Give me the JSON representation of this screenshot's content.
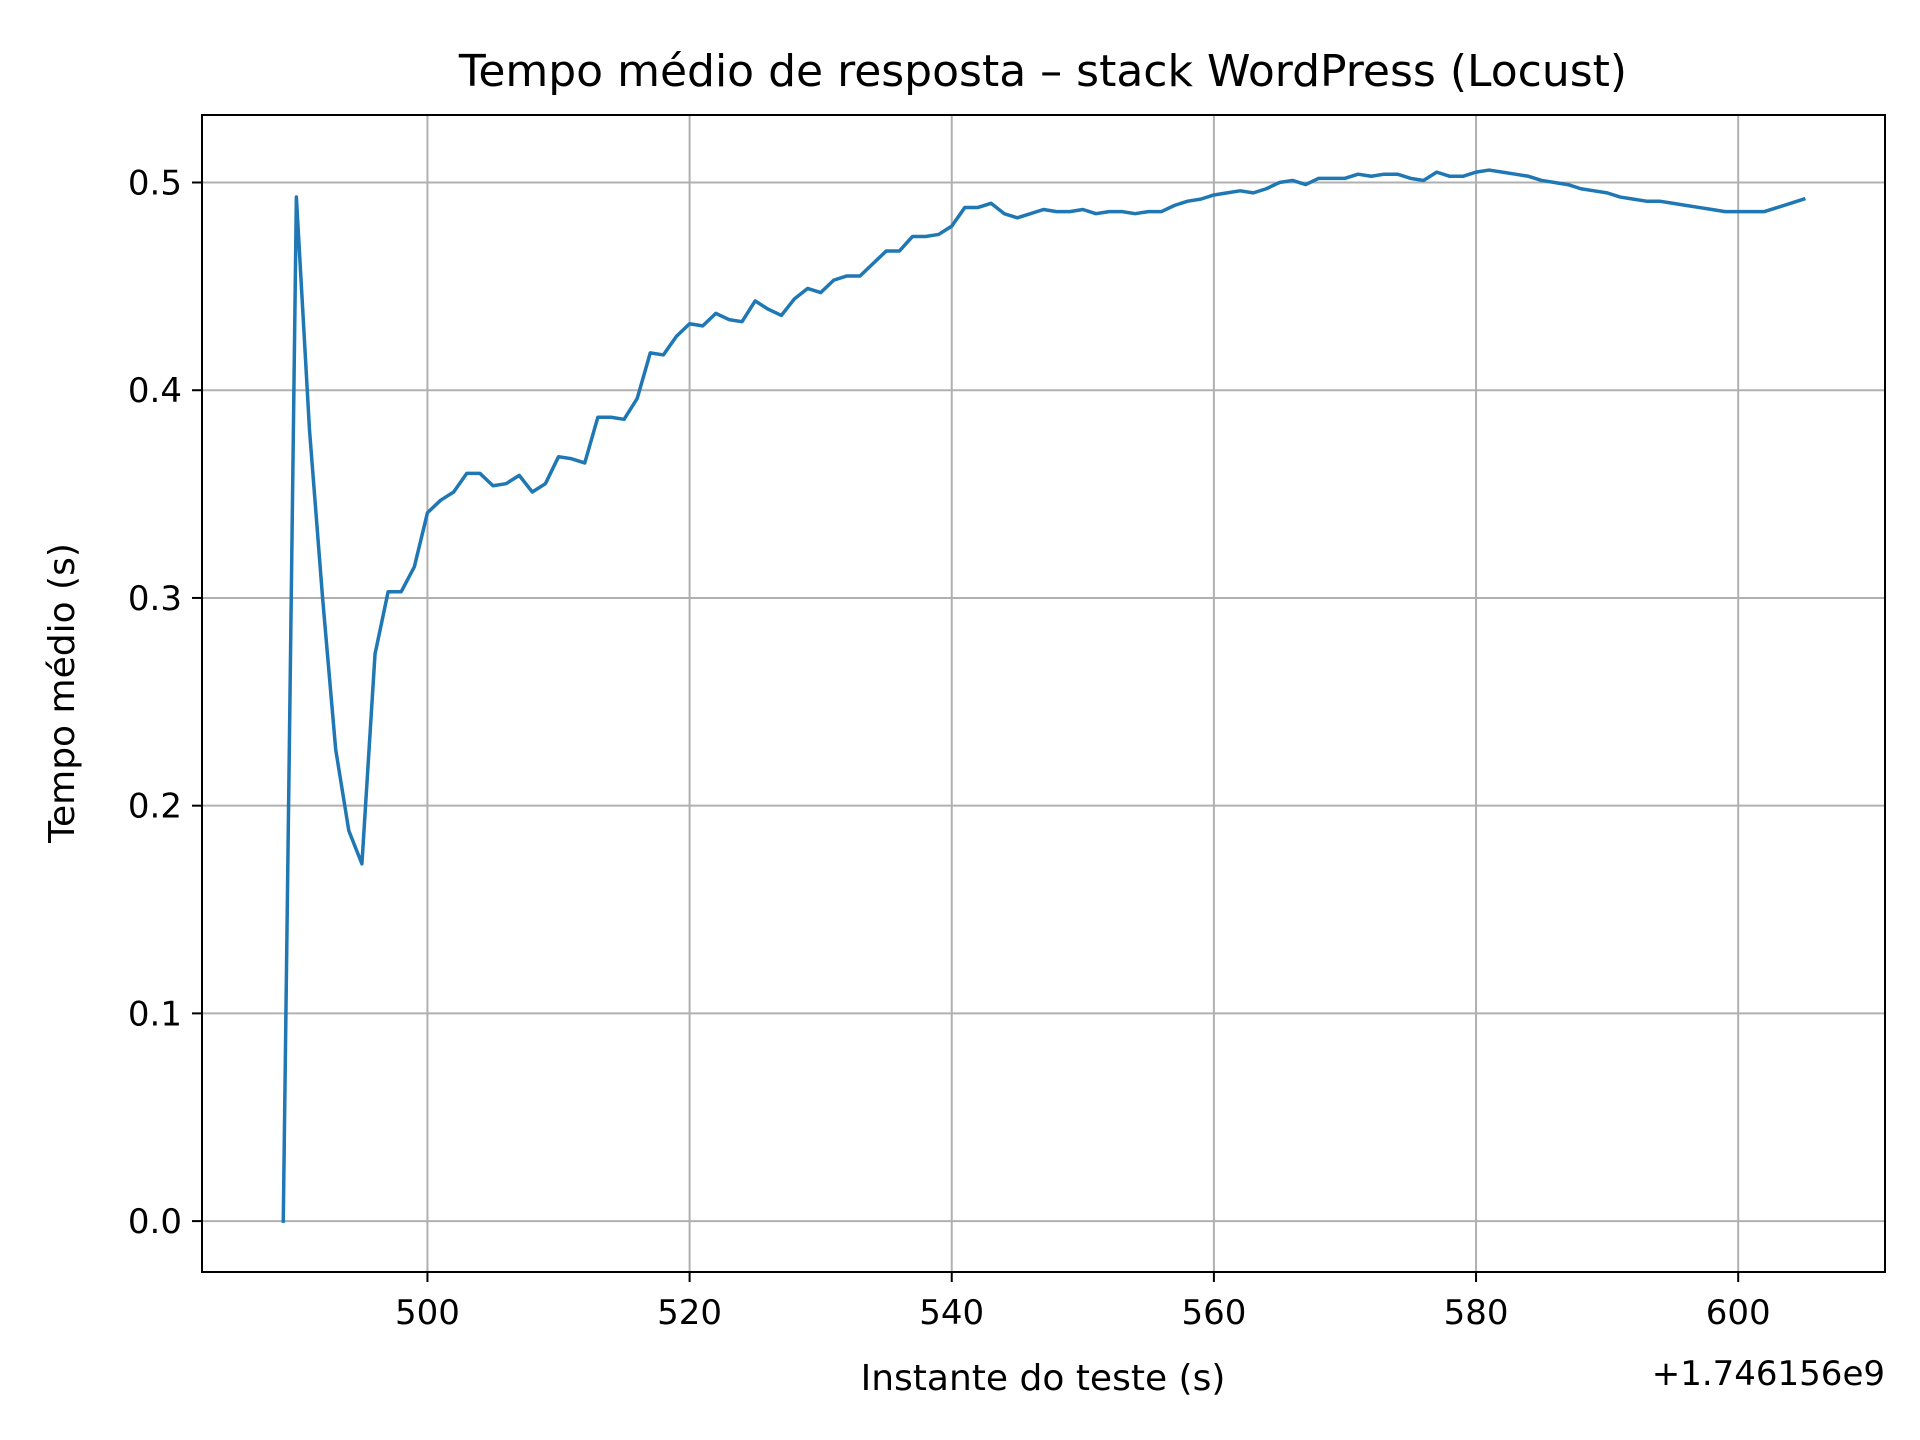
{
  "chart_data": {
    "type": "line",
    "title": "Tempo médio de resposta – stack WordPress (Locust)",
    "xlabel": "Instante do teste (s)",
    "ylabel": "Tempo médio (s)",
    "x_offset_label": "+1.746156e9",
    "xlim": [
      482.8,
      611.2
    ],
    "ylim": [
      -0.0245,
      0.5325
    ],
    "xticks": [
      500,
      520,
      540,
      560,
      580,
      600
    ],
    "xtick_labels": [
      "500",
      "520",
      "540",
      "560",
      "580",
      "600"
    ],
    "yticks": [
      0.0,
      0.1,
      0.2,
      0.3,
      0.4,
      0.5
    ],
    "ytick_labels": [
      "0.0",
      "0.1",
      "0.2",
      "0.3",
      "0.4",
      "0.5"
    ],
    "grid": true,
    "line_color": "#1f77b4",
    "x": [
      489,
      490,
      491,
      492,
      493,
      494,
      495,
      496,
      497,
      498,
      499,
      500,
      501,
      502,
      503,
      504,
      505,
      506,
      507,
      508,
      509,
      510,
      511,
      512,
      513,
      514,
      515,
      516,
      517,
      518,
      519,
      520,
      521,
      522,
      523,
      524,
      525,
      526,
      527,
      528,
      529,
      530,
      531,
      532,
      533,
      534,
      535,
      536,
      537,
      538,
      539,
      540,
      541,
      542,
      543,
      544,
      545,
      546,
      547,
      548,
      549,
      550,
      551,
      552,
      553,
      554,
      555,
      556,
      557,
      558,
      559,
      560,
      561,
      562,
      563,
      564,
      565,
      566,
      567,
      568,
      569,
      570,
      571,
      572,
      573,
      574,
      575,
      576,
      577,
      578,
      579,
      580,
      581,
      582,
      583,
      584,
      585,
      586,
      587,
      588,
      589,
      590,
      591,
      592,
      593,
      594,
      595,
      596,
      597,
      598,
      599,
      600,
      601,
      602,
      603,
      604,
      605
    ],
    "series": [
      {
        "values": [
          0.0,
          0.493,
          0.381,
          0.3,
          0.227,
          0.188,
          0.172,
          0.273,
          0.303,
          0.303,
          0.315,
          0.341,
          0.347,
          0.351,
          0.36,
          0.36,
          0.354,
          0.355,
          0.359,
          0.351,
          0.355,
          0.368,
          0.367,
          0.365,
          0.387,
          0.387,
          0.386,
          0.396,
          0.418,
          0.417,
          0.426,
          0.432,
          0.431,
          0.437,
          0.434,
          0.433,
          0.443,
          0.439,
          0.436,
          0.444,
          0.449,
          0.447,
          0.453,
          0.455,
          0.455,
          0.461,
          0.467,
          0.467,
          0.474,
          0.474,
          0.475,
          0.479,
          0.488,
          0.488,
          0.49,
          0.485,
          0.483,
          0.485,
          0.487,
          0.486,
          0.486,
          0.487,
          0.485,
          0.486,
          0.486,
          0.485,
          0.486,
          0.486,
          0.489,
          0.491,
          0.492,
          0.494,
          0.495,
          0.496,
          0.495,
          0.497,
          0.5,
          0.501,
          0.499,
          0.502,
          0.502,
          0.502,
          0.504,
          0.503,
          0.504,
          0.504,
          0.502,
          0.501,
          0.505,
          0.503,
          0.503,
          0.505,
          0.506,
          0.505,
          0.504,
          0.503,
          0.501,
          0.5,
          0.499,
          0.497,
          0.496,
          0.495,
          0.493,
          0.492,
          0.491,
          0.491,
          0.49,
          0.489,
          0.488,
          0.487,
          0.486,
          0.486,
          0.486,
          0.486,
          0.488,
          0.49,
          0.492
        ]
      }
    ]
  }
}
